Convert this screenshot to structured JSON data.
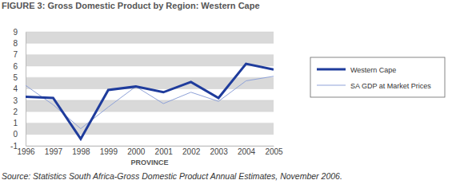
{
  "chart_data": {
    "type": "line",
    "title": "FIGURE 3: Gross Domestic Product by Region: Western Cape",
    "x_label": "PROVINCE",
    "source": "Source: Statistics South Africa-Gross Domestic Product Annual Estimates, November 2006.",
    "categories": [
      "1996",
      "1997",
      "1998",
      "1999",
      "2000",
      "2001",
      "2002",
      "2003",
      "2004",
      "2005"
    ],
    "series": [
      {
        "name": "Western Cape",
        "color": "#1f3c9c",
        "line_style": "solid",
        "values": [
          3.3,
          3.2,
          -0.4,
          3.9,
          4.2,
          3.7,
          4.6,
          3.2,
          6.2,
          5.7
        ]
      },
      {
        "name": "SA GDP at Market Prices",
        "color": "#8fa2d8",
        "line_style": "solid",
        "values": [
          4.3,
          2.6,
          0.5,
          2.4,
          4.2,
          2.7,
          3.7,
          2.9,
          4.7,
          5.1
        ]
      }
    ],
    "ylim": [
      -1,
      9
    ],
    "yticks": [
      -1,
      0,
      1,
      2,
      3,
      4,
      5,
      6,
      7,
      8,
      9
    ],
    "grid": true,
    "legend": "right"
  }
}
